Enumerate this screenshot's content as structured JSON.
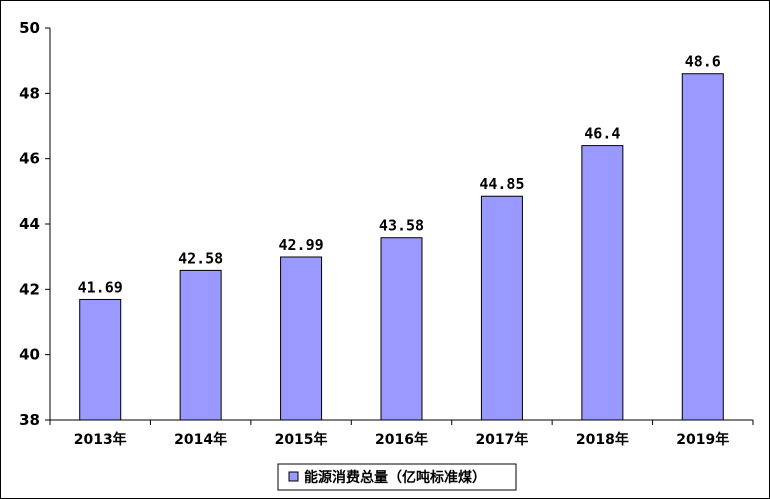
{
  "chart_data": {
    "type": "bar",
    "categories": [
      "2013年",
      "2014年",
      "2015年",
      "2016年",
      "2017年",
      "2018年",
      "2019年"
    ],
    "series": [
      {
        "name": "能源消费总量（亿吨标准煤）",
        "values": [
          41.69,
          42.58,
          42.99,
          43.58,
          44.85,
          46.4,
          48.6
        ],
        "value_labels": [
          "41.69",
          "42.58",
          "42.99",
          "43.58",
          "44.85",
          "46.4",
          "48.6"
        ]
      }
    ],
    "ylim": [
      38,
      50
    ],
    "yticks": [
      38,
      40,
      42,
      44,
      46,
      48,
      50
    ],
    "grid": false,
    "legend_position": "bottom",
    "colors": {
      "bar_fill": "#9999ff",
      "bar_stroke": "#000000",
      "axis": "#000000"
    }
  }
}
